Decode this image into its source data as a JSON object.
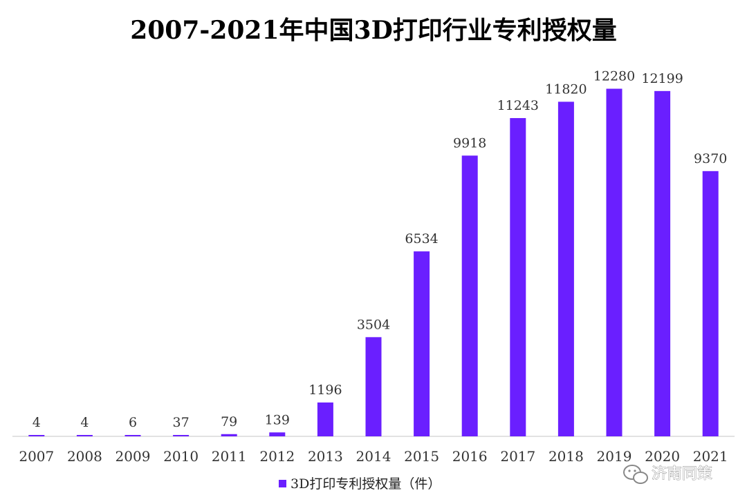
{
  "chart_data": {
    "type": "bar",
    "title": "2007-2021年中国3D打印行业专利授权量",
    "categories": [
      "2007",
      "2008",
      "2009",
      "2010",
      "2011",
      "2012",
      "2013",
      "2014",
      "2015",
      "2016",
      "2017",
      "2018",
      "2019",
      "2020",
      "2021"
    ],
    "series": [
      {
        "name": "3D打印专利授权量（件）",
        "color": "#6a1fff",
        "values": [
          4,
          4,
          6,
          37,
          79,
          139,
          1196,
          3504,
          6534,
          9918,
          11243,
          11820,
          12280,
          12199,
          9370
        ]
      }
    ],
    "ylim": [
      0,
      14000
    ],
    "grid": false,
    "legend": "bottom-center"
  },
  "watermark": {
    "text": "济南同策",
    "icon": "wechat-icon"
  }
}
